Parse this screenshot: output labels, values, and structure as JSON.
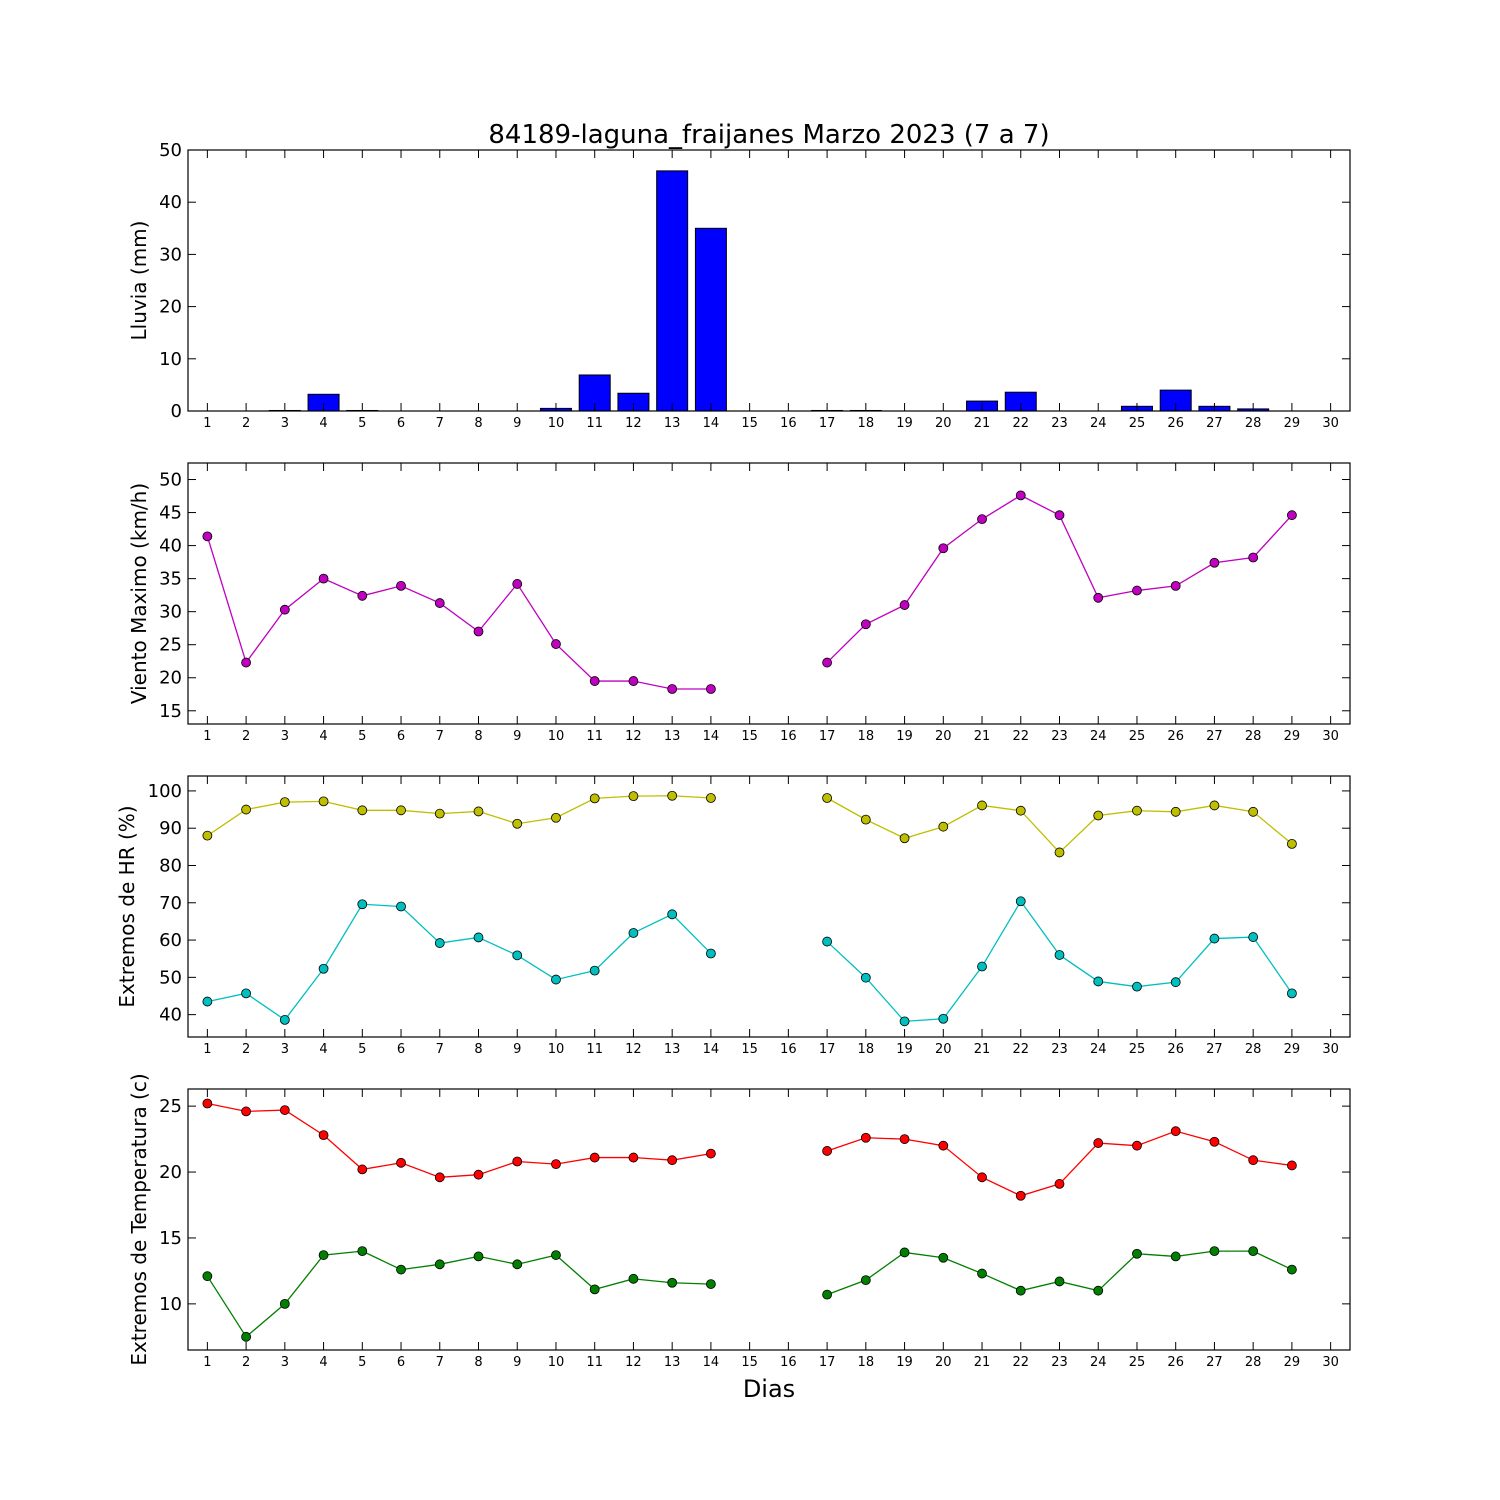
{
  "chart_data": [
    {
      "type": "bar",
      "title": "84189-laguna_fraijanes Marzo 2023  (7 a 7)",
      "ylabel": "Lluvia (mm)",
      "xlabel": "",
      "xlim": [
        0.5,
        30.5
      ],
      "ylim": [
        0,
        50
      ],
      "yticks": [
        0,
        10,
        20,
        30,
        40,
        50
      ],
      "categories": [
        1,
        2,
        3,
        4,
        5,
        6,
        7,
        8,
        9,
        10,
        11,
        12,
        13,
        14,
        15,
        16,
        17,
        18,
        19,
        20,
        21,
        22,
        23,
        24,
        25,
        26,
        27,
        28,
        29,
        30
      ],
      "values": [
        0,
        0,
        0.1,
        3.2,
        0.1,
        0,
        0,
        0,
        0,
        0.5,
        6.9,
        3.4,
        46,
        35,
        null,
        null,
        0.1,
        0.1,
        0,
        0,
        1.9,
        3.6,
        0,
        0,
        0.9,
        4,
        0.9,
        0.4,
        0,
        null
      ],
      "color": "#0000ff",
      "grid": false
    },
    {
      "type": "line",
      "title": "",
      "ylabel": "Viento Maximo (km/h)",
      "xlabel": "",
      "xlim": [
        0.5,
        30.5
      ],
      "ylim": [
        13,
        52.5
      ],
      "yticks": [
        15,
        20,
        25,
        30,
        35,
        40,
        45,
        50
      ],
      "x": [
        1,
        2,
        3,
        4,
        5,
        6,
        7,
        8,
        9,
        10,
        11,
        12,
        13,
        14,
        15,
        16,
        17,
        18,
        19,
        20,
        21,
        22,
        23,
        24,
        25,
        26,
        27,
        28,
        29,
        30
      ],
      "series": [
        {
          "color": "#bf00bf",
          "values": [
            41.4,
            22.3,
            30.3,
            35,
            32.4,
            33.9,
            31.3,
            27,
            34.2,
            25.1,
            19.5,
            19.5,
            18.3,
            18.3,
            null,
            null,
            22.3,
            28.1,
            31,
            39.6,
            44,
            47.6,
            44.6,
            32.1,
            33.2,
            33.9,
            37.4,
            38.2,
            44.6,
            null
          ]
        }
      ],
      "grid": false
    },
    {
      "type": "line",
      "title": "",
      "ylabel": "Extremos de HR (%)",
      "xlabel": "",
      "xlim": [
        0.5,
        30.5
      ],
      "ylim": [
        34,
        104
      ],
      "yticks": [
        40,
        50,
        60,
        70,
        80,
        90,
        100
      ],
      "x": [
        1,
        2,
        3,
        4,
        5,
        6,
        7,
        8,
        9,
        10,
        11,
        12,
        13,
        14,
        15,
        16,
        17,
        18,
        19,
        20,
        21,
        22,
        23,
        24,
        25,
        26,
        27,
        28,
        29,
        30
      ],
      "series": [
        {
          "color": "#bfbf00",
          "values": [
            88,
            95,
            97,
            97.2,
            94.8,
            94.8,
            93.9,
            94.5,
            91.2,
            92.8,
            98,
            98.6,
            98.7,
            98.1,
            null,
            null,
            98.1,
            92.3,
            87.3,
            90.4,
            96.1,
            94.7,
            83.5,
            93.4,
            94.7,
            94.4,
            96.1,
            94.4,
            85.8,
            null
          ]
        },
        {
          "color": "#00bfbf",
          "values": [
            43.5,
            45.7,
            38.6,
            52.3,
            69.6,
            69,
            59.2,
            60.7,
            55.9,
            49.4,
            51.8,
            61.9,
            66.9,
            56.4,
            null,
            null,
            59.6,
            49.9,
            38.2,
            38.9,
            52.9,
            70.4,
            56,
            48.9,
            47.5,
            48.7,
            60.4,
            60.8,
            45.7,
            null
          ]
        }
      ],
      "grid": false
    },
    {
      "type": "line",
      "title": "",
      "ylabel": "Extremos de Temperatura (c)",
      "xlabel": "Dias",
      "xlim": [
        0.5,
        30.5
      ],
      "ylim": [
        6.5,
        26.3
      ],
      "yticks": [
        10,
        15,
        20,
        25
      ],
      "x": [
        1,
        2,
        3,
        4,
        5,
        6,
        7,
        8,
        9,
        10,
        11,
        12,
        13,
        14,
        15,
        16,
        17,
        18,
        19,
        20,
        21,
        22,
        23,
        24,
        25,
        26,
        27,
        28,
        29,
        30
      ],
      "series": [
        {
          "color": "#ff0000",
          "values": [
            25.2,
            24.6,
            24.7,
            22.8,
            20.2,
            20.7,
            19.6,
            19.8,
            20.8,
            20.6,
            21.1,
            21.1,
            20.9,
            21.4,
            null,
            null,
            21.6,
            22.6,
            22.5,
            22,
            19.6,
            18.2,
            19.1,
            22.2,
            22,
            23.1,
            22.3,
            20.9,
            20.5,
            null
          ]
        },
        {
          "color": "#007f00",
          "values": [
            12.1,
            7.5,
            10,
            13.7,
            14,
            12.6,
            13,
            13.6,
            13,
            13.7,
            11.1,
            11.9,
            11.6,
            11.5,
            null,
            null,
            10.7,
            11.8,
            13.9,
            13.5,
            12.3,
            11,
            11.7,
            11,
            13.8,
            13.6,
            14,
            14,
            12.6,
            null
          ]
        }
      ],
      "grid": false
    }
  ]
}
